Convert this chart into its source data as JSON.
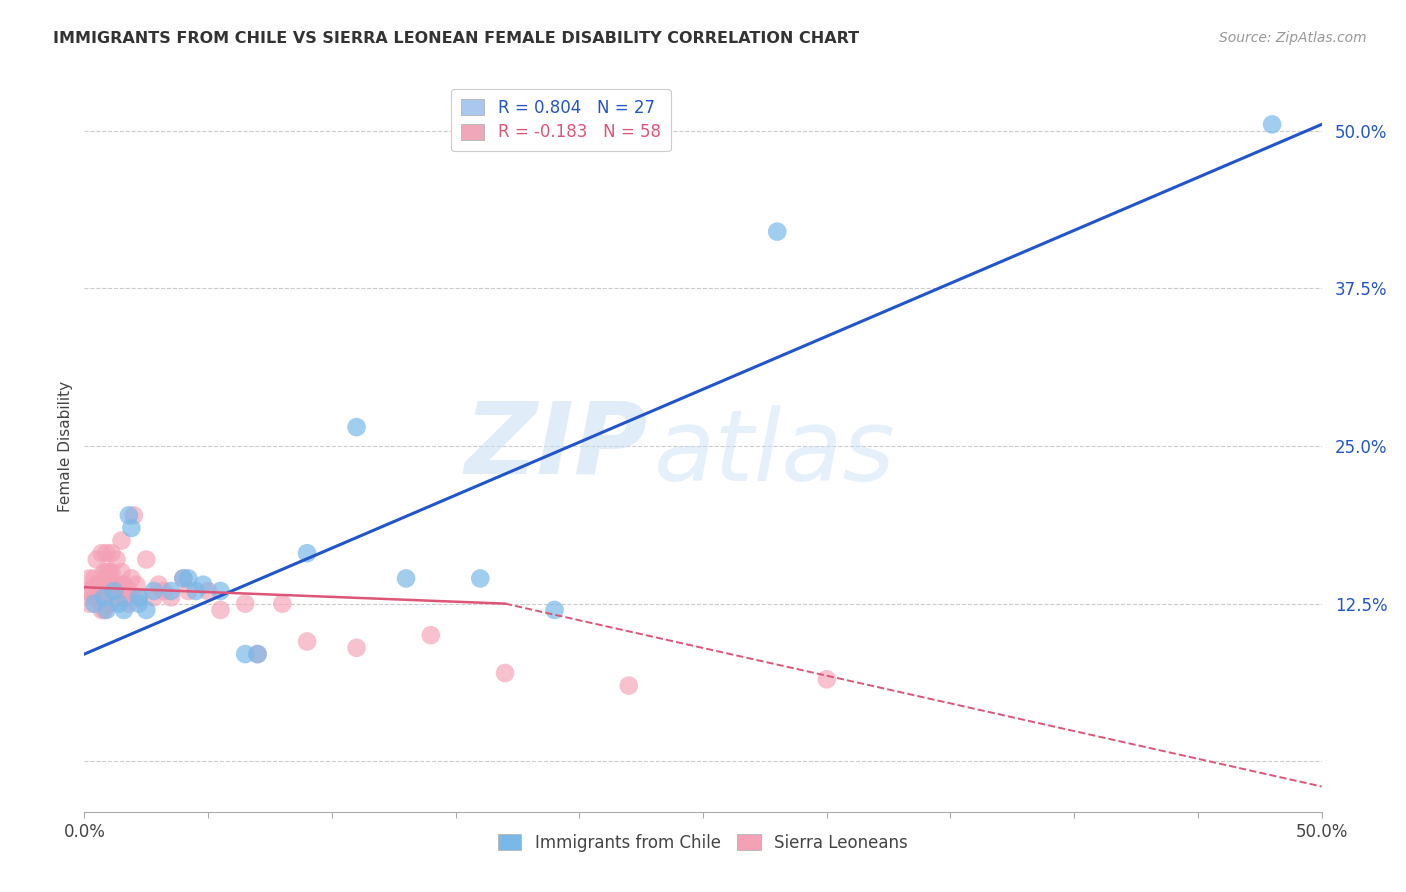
{
  "title": "IMMIGRANTS FROM CHILE VS SIERRA LEONEAN FEMALE DISABILITY CORRELATION CHART",
  "source": "Source: ZipAtlas.com",
  "ylabel": "Female Disability",
  "xlim": [
    0.0,
    0.5
  ],
  "ylim": [
    -0.04,
    0.54
  ],
  "ytick_values": [
    0.0,
    0.125,
    0.25,
    0.375,
    0.5
  ],
  "ytick_labels": [
    "",
    "12.5%",
    "25.0%",
    "37.5%",
    "50.0%"
  ],
  "xtick_values": [
    0.0,
    0.05,
    0.1,
    0.15,
    0.2,
    0.25,
    0.3,
    0.35,
    0.4,
    0.45,
    0.5
  ],
  "xtick_labels": [
    "0.0%",
    "",
    "",
    "",
    "",
    "",
    "",
    "",
    "",
    "",
    "50.0%"
  ],
  "legend_top": [
    {
      "label": "R = 0.804   N = 27",
      "color": "#a8c8f0"
    },
    {
      "label": "R = -0.183   N = 58",
      "color": "#f0a8b8"
    }
  ],
  "legend_bottom": [
    "Immigrants from Chile",
    "Sierra Leoneans"
  ],
  "watermark_zip": "ZIP",
  "watermark_atlas": "atlas",
  "blue_color": "#7ab8e8",
  "pink_color": "#f4a0b5",
  "blue_line_color": "#2255cc",
  "pink_line_color": "#dd5577",
  "ytick_color": "#2255cc",
  "blue_line": {
    "x0": 0.0,
    "y0": 0.085,
    "x1": 0.5,
    "y1": 0.505
  },
  "pink_line_solid_x0": 0.0,
  "pink_line_solid_y0": 0.138,
  "pink_line_solid_x1": 0.17,
  "pink_line_solid_y1": 0.125,
  "pink_line_dash_x0": 0.17,
  "pink_line_dash_y0": 0.125,
  "pink_line_dash_x1": 0.5,
  "pink_line_dash_y1": -0.02,
  "blue_scatter_x": [
    0.004,
    0.008,
    0.009,
    0.012,
    0.014,
    0.016,
    0.018,
    0.019,
    0.022,
    0.022,
    0.025,
    0.028,
    0.035,
    0.04,
    0.042,
    0.045,
    0.048,
    0.055,
    0.065,
    0.07,
    0.09,
    0.11,
    0.13,
    0.16,
    0.19,
    0.28,
    0.48
  ],
  "blue_scatter_y": [
    0.125,
    0.13,
    0.12,
    0.135,
    0.125,
    0.12,
    0.195,
    0.185,
    0.13,
    0.125,
    0.12,
    0.135,
    0.135,
    0.145,
    0.145,
    0.135,
    0.14,
    0.135,
    0.085,
    0.085,
    0.165,
    0.265,
    0.145,
    0.145,
    0.12,
    0.42,
    0.505
  ],
  "pink_scatter_x": [
    0.001,
    0.002,
    0.002,
    0.003,
    0.004,
    0.004,
    0.005,
    0.005,
    0.006,
    0.006,
    0.007,
    0.007,
    0.007,
    0.008,
    0.008,
    0.008,
    0.009,
    0.009,
    0.01,
    0.01,
    0.01,
    0.011,
    0.011,
    0.012,
    0.012,
    0.013,
    0.013,
    0.014,
    0.015,
    0.015,
    0.015,
    0.016,
    0.016,
    0.017,
    0.018,
    0.018,
    0.019,
    0.02,
    0.021,
    0.022,
    0.025,
    0.028,
    0.03,
    0.032,
    0.035,
    0.04,
    0.042,
    0.05,
    0.055,
    0.065,
    0.07,
    0.08,
    0.09,
    0.11,
    0.14,
    0.17,
    0.22,
    0.3
  ],
  "pink_scatter_y": [
    0.135,
    0.125,
    0.145,
    0.135,
    0.13,
    0.145,
    0.14,
    0.16,
    0.14,
    0.13,
    0.165,
    0.13,
    0.12,
    0.15,
    0.14,
    0.12,
    0.165,
    0.15,
    0.15,
    0.14,
    0.125,
    0.165,
    0.15,
    0.14,
    0.13,
    0.16,
    0.14,
    0.135,
    0.175,
    0.15,
    0.14,
    0.14,
    0.13,
    0.13,
    0.135,
    0.125,
    0.145,
    0.195,
    0.14,
    0.13,
    0.16,
    0.13,
    0.14,
    0.135,
    0.13,
    0.145,
    0.135,
    0.135,
    0.12,
    0.125,
    0.085,
    0.125,
    0.095,
    0.09,
    0.1,
    0.07,
    0.06,
    0.065
  ]
}
